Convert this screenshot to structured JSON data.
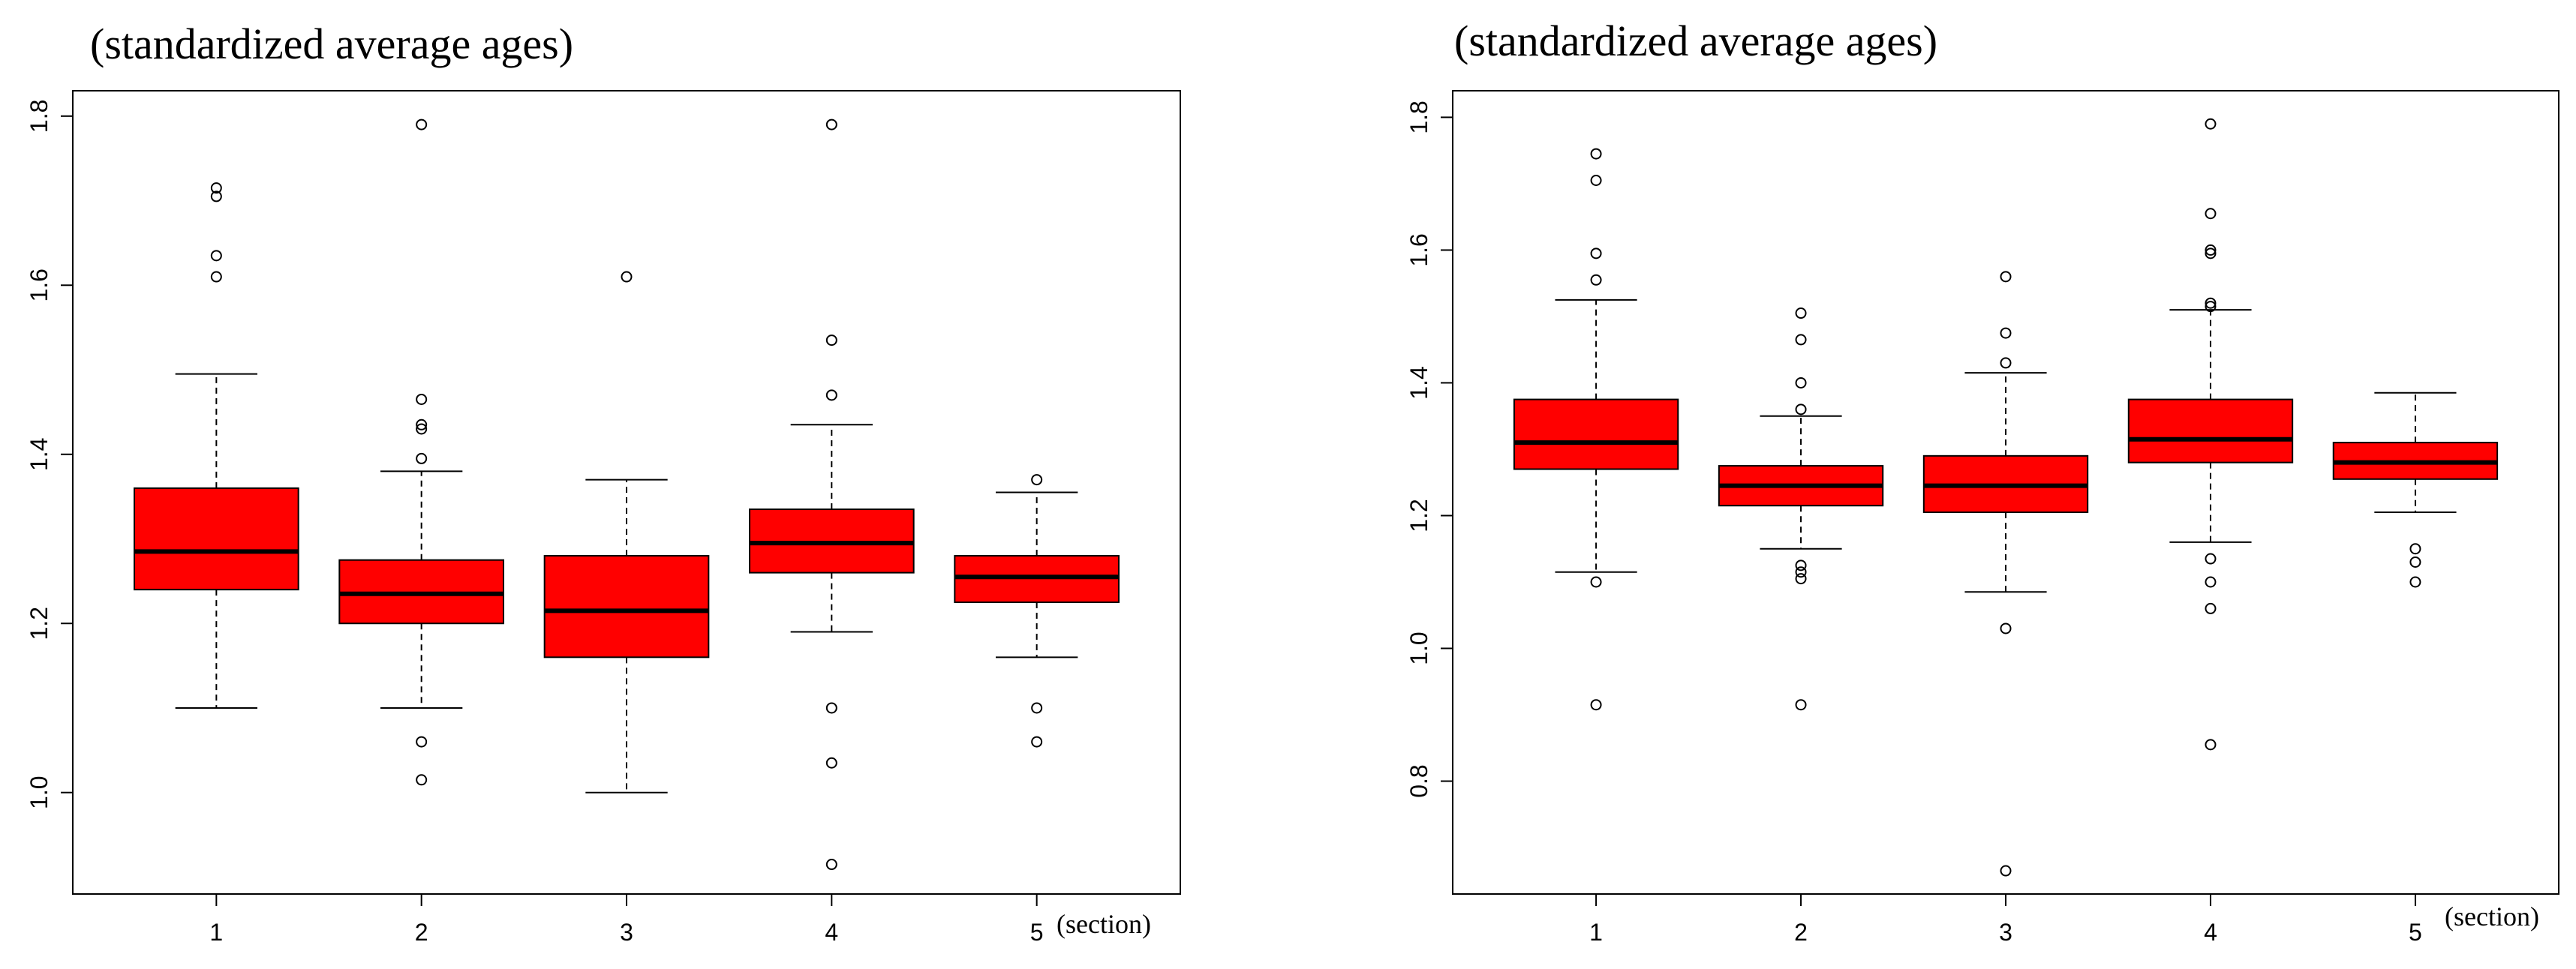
{
  "chart_data": [
    {
      "type": "boxplot",
      "title": "(standardized average ages)",
      "xlabel": "(section)",
      "ylabel": "",
      "ylim": [
        0.88,
        1.83
      ],
      "yticks": [
        1.0,
        1.2,
        1.4,
        1.6,
        1.8
      ],
      "ytick_labels": [
        "1.0",
        "1.2",
        "1.4",
        "1.6",
        "1.8"
      ],
      "categories": [
        "1",
        "2",
        "3",
        "4",
        "5"
      ],
      "box_color": "#ff0000",
      "boxes": [
        {
          "category": "1",
          "whisker_low": 1.1,
          "q1": 1.24,
          "median": 1.285,
          "q3": 1.36,
          "whisker_high": 1.495,
          "outliers": [
            1.61,
            1.635,
            1.705,
            1.715
          ]
        },
        {
          "category": "2",
          "whisker_low": 1.1,
          "q1": 1.2,
          "median": 1.235,
          "q3": 1.275,
          "whisker_high": 1.38,
          "outliers": [
            1.015,
            1.06,
            1.395,
            1.43,
            1.435,
            1.465,
            1.79
          ]
        },
        {
          "category": "3",
          "whisker_low": 1.0,
          "q1": 1.16,
          "median": 1.215,
          "q3": 1.28,
          "whisker_high": 1.37,
          "outliers": [
            1.61
          ]
        },
        {
          "category": "4",
          "whisker_low": 1.19,
          "q1": 1.26,
          "median": 1.295,
          "q3": 1.335,
          "whisker_high": 1.435,
          "outliers": [
            0.915,
            1.035,
            1.1,
            1.47,
            1.535,
            1.79
          ]
        },
        {
          "category": "5",
          "whisker_low": 1.16,
          "q1": 1.225,
          "median": 1.255,
          "q3": 1.28,
          "whisker_high": 1.355,
          "outliers": [
            1.06,
            1.1,
            1.37
          ]
        }
      ]
    },
    {
      "type": "boxplot",
      "title": "(standardized average ages)",
      "xlabel": "(section)",
      "ylabel": "",
      "ylim": [
        0.63,
        1.84
      ],
      "yticks": [
        0.8,
        1.0,
        1.2,
        1.4,
        1.6,
        1.8
      ],
      "ytick_labels": [
        "0.8",
        "1.0",
        "1.2",
        "1.4",
        "1.6",
        "1.8"
      ],
      "categories": [
        "1",
        "2",
        "3",
        "4",
        "5"
      ],
      "box_color": "#ff0000",
      "boxes": [
        {
          "category": "1",
          "whisker_low": 1.115,
          "q1": 1.27,
          "median": 1.31,
          "q3": 1.375,
          "whisker_high": 1.525,
          "outliers": [
            0.915,
            1.1,
            1.555,
            1.595,
            1.705,
            1.745
          ]
        },
        {
          "category": "2",
          "whisker_low": 1.15,
          "q1": 1.215,
          "median": 1.245,
          "q3": 1.275,
          "whisker_high": 1.35,
          "outliers": [
            0.915,
            1.105,
            1.115,
            1.125,
            1.36,
            1.4,
            1.465,
            1.505
          ]
        },
        {
          "category": "3",
          "whisker_low": 1.085,
          "q1": 1.205,
          "median": 1.245,
          "q3": 1.29,
          "whisker_high": 1.415,
          "outliers": [
            0.665,
            1.03,
            1.43,
            1.475,
            1.56
          ]
        },
        {
          "category": "4",
          "whisker_low": 1.16,
          "q1": 1.28,
          "median": 1.315,
          "q3": 1.375,
          "whisker_high": 1.51,
          "outliers": [
            0.855,
            1.06,
            1.1,
            1.135,
            1.515,
            1.52,
            1.595,
            1.6,
            1.655,
            1.79
          ]
        },
        {
          "category": "5",
          "whisker_low": 1.205,
          "q1": 1.255,
          "median": 1.28,
          "q3": 1.31,
          "whisker_high": 1.385,
          "outliers": [
            1.1,
            1.13,
            1.15
          ]
        }
      ]
    }
  ]
}
